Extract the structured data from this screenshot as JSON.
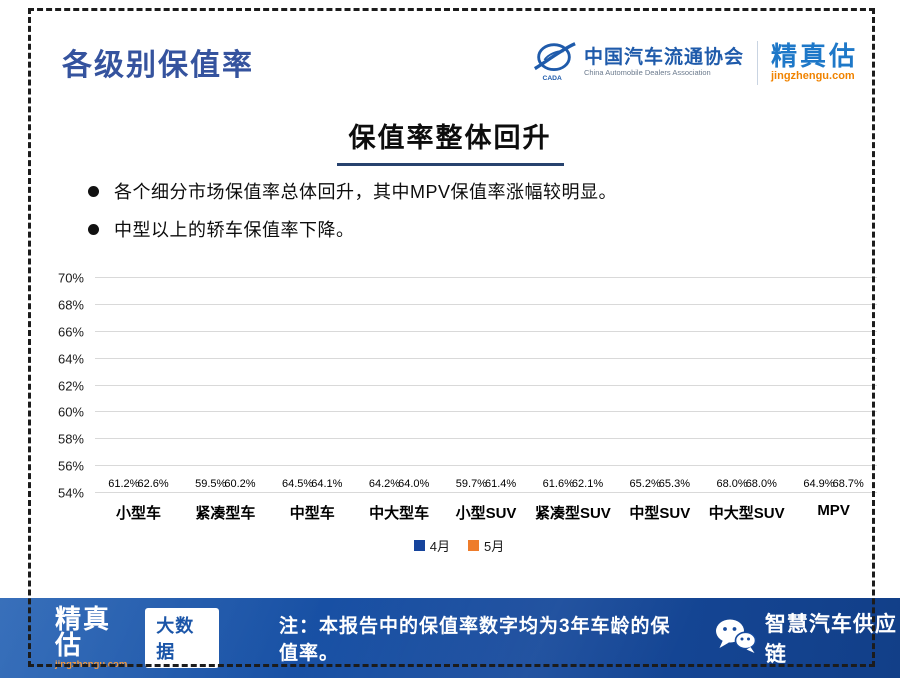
{
  "header": {
    "title": "各级别保值率",
    "association": {
      "name_cn": "中国汽车流通协会",
      "name_en": "China Automobile Dealers Association",
      "icon": "cada-logo-icon"
    },
    "brand": {
      "name": "精真估",
      "domain": "jingzhengu.com"
    }
  },
  "section": {
    "title": "保值率整体回升",
    "bullets": [
      "各个细分市场保值率总体回升，其中MPV保值率涨幅较明显。",
      "中型以上的轿车保值率下降。"
    ]
  },
  "chart_data": {
    "type": "bar",
    "categories": [
      "小型车",
      "紧凑型车",
      "中型车",
      "中大型车",
      "小型SUV",
      "紧凑型SUV",
      "中型SUV",
      "中大型SUV",
      "MPV"
    ],
    "series": [
      {
        "name": "4月",
        "color": "#16449c",
        "values": [
          61.2,
          59.5,
          64.5,
          64.2,
          59.7,
          61.6,
          65.2,
          68.0,
          64.9
        ]
      },
      {
        "name": "5月",
        "color": "#ee7c2b",
        "values": [
          62.6,
          60.2,
          64.1,
          64.0,
          61.4,
          62.1,
          65.3,
          68.0,
          68.7
        ]
      }
    ],
    "title": "",
    "xlabel": "",
    "ylabel": "",
    "ylim": [
      54,
      70
    ],
    "ytick_step": 2,
    "ytick_suffix": "%",
    "grid": true,
    "legend_position": "bottom",
    "value_labels": true
  },
  "footer": {
    "brand": "精真估",
    "brand_domain": "jingzhengu.com",
    "badge": "大数据",
    "note": "注：本报告中的保值率数字均为3年车龄的保值率。",
    "wechat_label": "智慧汽车供应链",
    "wechat_icon": "wechat-icon"
  },
  "colors": {
    "title_blue": "#35539e",
    "bar_blue": "#16449c",
    "bar_orange": "#ee7c2b",
    "footer_bg": "#164a9d",
    "brand_orange": "#f08300",
    "gridline": "#d9d9d9"
  }
}
